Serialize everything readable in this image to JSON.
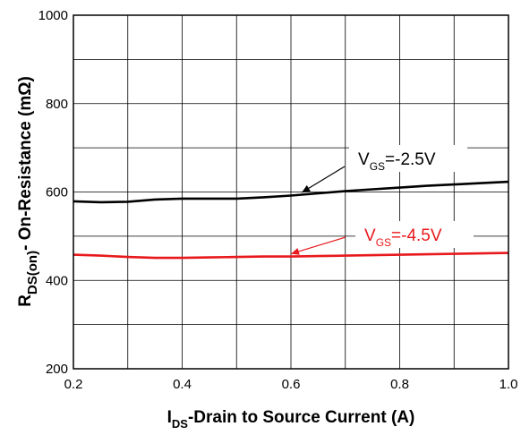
{
  "chart_data": {
    "type": "line",
    "title": "",
    "xlabel": {
      "main": "I",
      "sub": "DS",
      "rest": "-Drain to Source Current (A)"
    },
    "ylabel": {
      "main": "R",
      "sub": "DS(on)",
      "rest": "- On-Resistance (mΩ)"
    },
    "xlim": [
      0.2,
      1.0
    ],
    "ylim": [
      200,
      1000
    ],
    "x_ticks": [
      "0.2",
      "0.4",
      "0.6",
      "0.8",
      "1.0"
    ],
    "y_ticks": [
      "200",
      "400",
      "600",
      "800",
      "1000"
    ],
    "grid": true,
    "series": [
      {
        "name": "VGS=-2.5V",
        "color": "#000000",
        "x": [
          0.2,
          0.25,
          0.3,
          0.35,
          0.4,
          0.45,
          0.5,
          0.55,
          0.6,
          0.65,
          0.7,
          0.75,
          0.8,
          0.85,
          0.9,
          0.95,
          1.0
        ],
        "y": [
          579,
          577,
          578,
          583,
          585,
          585,
          585,
          588,
          592,
          597,
          602,
          606,
          610,
          614,
          617,
          620,
          623
        ]
      },
      {
        "name": "VGS=-4.5V",
        "color": "#e8191c",
        "x": [
          0.2,
          0.25,
          0.3,
          0.35,
          0.4,
          0.45,
          0.5,
          0.55,
          0.6,
          0.65,
          0.7,
          0.75,
          0.8,
          0.85,
          0.9,
          0.95,
          1.0
        ],
        "y": [
          458,
          456,
          453,
          451,
          451,
          452,
          453,
          454,
          454,
          455,
          456,
          457,
          458,
          459,
          460,
          461,
          462
        ]
      }
    ],
    "annotations": [
      {
        "series": 0,
        "main": "V",
        "sub": "GS",
        "rest": "=-2.5V",
        "color": "#000000",
        "arrow_to": [
          0.62,
          593
        ]
      },
      {
        "series": 1,
        "main": "V",
        "sub": "GS",
        "rest": "=-4.5V",
        "color": "#e8191c",
        "arrow_to": [
          0.6,
          454
        ]
      }
    ]
  }
}
